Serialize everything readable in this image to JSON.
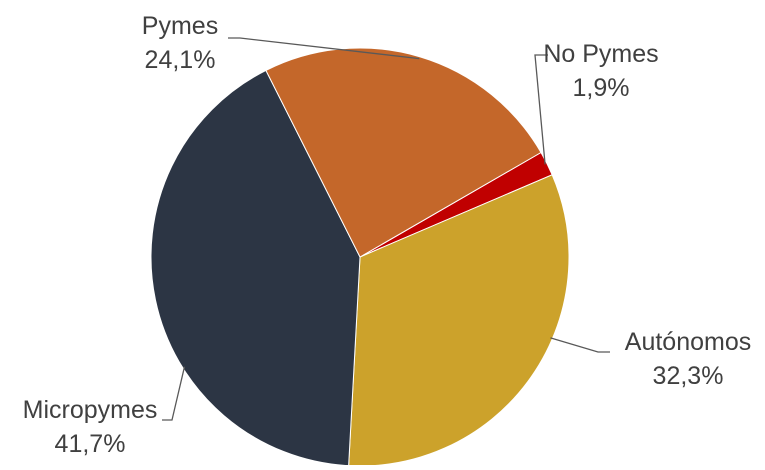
{
  "chart_data": {
    "type": "pie",
    "title": "",
    "legend": "none",
    "slices": [
      {
        "label": "No Pymes",
        "value_label": "1,9%",
        "value": 1.9,
        "color": "#C00000"
      },
      {
        "label": "Autónomos",
        "value_label": "32,3%",
        "value": 32.3,
        "color": "#CCA22B"
      },
      {
        "label": "Micropymes",
        "value_label": "41,7%",
        "value": 41.7,
        "color": "#2C3544"
      },
      {
        "label": "Pymes",
        "value_label": "24,1%",
        "value": 24.1,
        "color": "#C4672A"
      }
    ]
  }
}
